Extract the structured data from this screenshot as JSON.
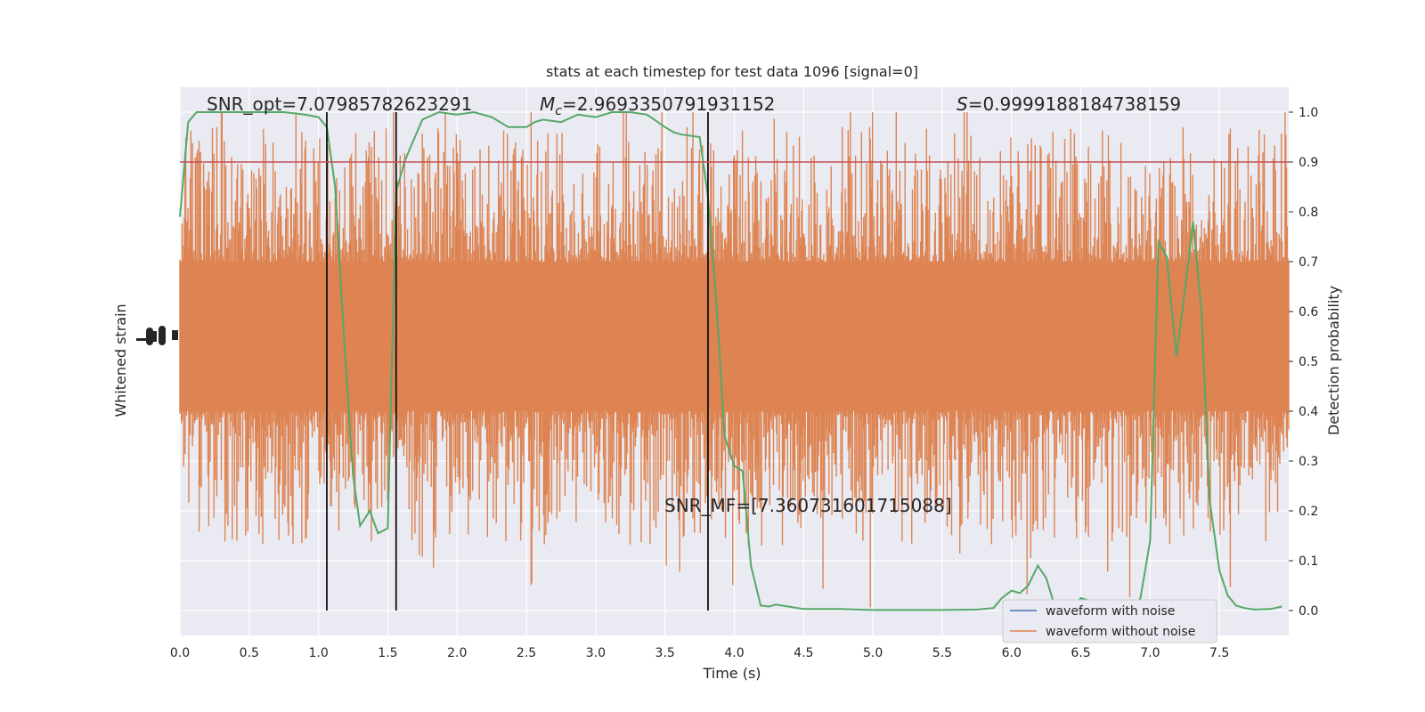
{
  "chart_data": {
    "type": "line",
    "title": "stats at each timestep for test data 1096 [signal=0]",
    "xlabel": "Time (s)",
    "ylabel_left": "Whitened strain",
    "ylabel_right": "Detection probability",
    "xlim": [
      0.0,
      8.0
    ],
    "ylim_right": [
      -0.05,
      1.05
    ],
    "x_ticks": [
      "0.0",
      "0.5",
      "1.0",
      "1.5",
      "2.0",
      "2.5",
      "3.0",
      "3.5",
      "4.0",
      "4.5",
      "5.0",
      "5.5",
      "6.0",
      "6.5",
      "7.0",
      "7.5"
    ],
    "y_right_ticks": [
      "0.0",
      "0.1",
      "0.2",
      "0.3",
      "0.4",
      "0.5",
      "0.6",
      "0.7",
      "0.8",
      "0.9",
      "1.0"
    ],
    "grid": true,
    "legend_position": "lower-right",
    "annotations": {
      "snr_opt": "SNR_opt=7.07985782623291",
      "mc_symbol": "M",
      "mc_sub": "c",
      "mc_value": "=2.9693350791931152",
      "s_symbol": "S",
      "s_value": "=0.9999188184738159",
      "snr_mf": "SNR_MF=[7.360731601715088]"
    },
    "threshold": 0.9,
    "vlines": [
      1.06,
      1.56,
      3.81
    ],
    "series": [
      {
        "name": "waveform with noise",
        "color": "#4c72b0"
      },
      {
        "name": "waveform without noise",
        "color": "#dd8452"
      }
    ],
    "probability_series": {
      "color": "#55a868",
      "x": [
        0.0,
        0.06,
        0.12,
        0.18,
        0.3,
        0.45,
        0.6,
        0.75,
        0.9,
        1.0,
        1.06,
        1.12,
        1.19,
        1.25,
        1.3,
        1.37,
        1.43,
        1.5,
        1.56,
        1.62,
        1.68,
        1.75,
        1.87,
        2.0,
        2.12,
        2.25,
        2.37,
        2.5,
        2.56,
        2.62,
        2.75,
        2.87,
        3.0,
        3.12,
        3.25,
        3.37,
        3.5,
        3.56,
        3.62,
        3.75,
        3.81,
        3.87,
        3.93,
        4.0,
        4.06,
        4.12,
        4.19,
        4.25,
        4.3,
        4.5,
        4.75,
        5.0,
        5.25,
        5.5,
        5.75,
        5.87,
        5.93,
        6.0,
        6.06,
        6.12,
        6.19,
        6.25,
        6.3,
        6.37,
        6.43,
        6.5,
        6.56,
        6.62,
        6.75,
        6.87,
        6.93,
        7.0,
        7.06,
        7.12,
        7.19,
        7.25,
        7.31,
        7.37,
        7.43,
        7.5,
        7.56,
        7.62,
        7.68,
        7.75,
        7.87,
        7.95
      ],
      "y": [
        0.79,
        0.98,
        1.0,
        1.0,
        1.0,
        1.0,
        1.0,
        1.0,
        0.995,
        0.99,
        0.97,
        0.85,
        0.52,
        0.27,
        0.17,
        0.2,
        0.155,
        0.165,
        0.84,
        0.9,
        0.94,
        0.985,
        1.0,
        0.995,
        1.0,
        0.99,
        0.97,
        0.97,
        0.98,
        0.985,
        0.98,
        0.995,
        0.99,
        1.0,
        1.0,
        0.995,
        0.97,
        0.96,
        0.955,
        0.95,
        0.83,
        0.62,
        0.35,
        0.29,
        0.28,
        0.09,
        0.01,
        0.008,
        0.012,
        0.003,
        0.003,
        0.001,
        0.001,
        0.001,
        0.002,
        0.005,
        0.025,
        0.04,
        0.035,
        0.05,
        0.09,
        0.065,
        0.02,
        0.01,
        0.005,
        0.025,
        0.02,
        0.0,
        0.01,
        0.0,
        0.025,
        0.14,
        0.74,
        0.71,
        0.51,
        0.64,
        0.78,
        0.6,
        0.22,
        0.08,
        0.03,
        0.01,
        0.005,
        0.002,
        0.003,
        0.008
      ]
    },
    "strain_envelope": {
      "center_prob": 0.55,
      "core_half_width": 0.15,
      "spike_max_above": 1.0,
      "spike_min_below": 0.0
    }
  }
}
